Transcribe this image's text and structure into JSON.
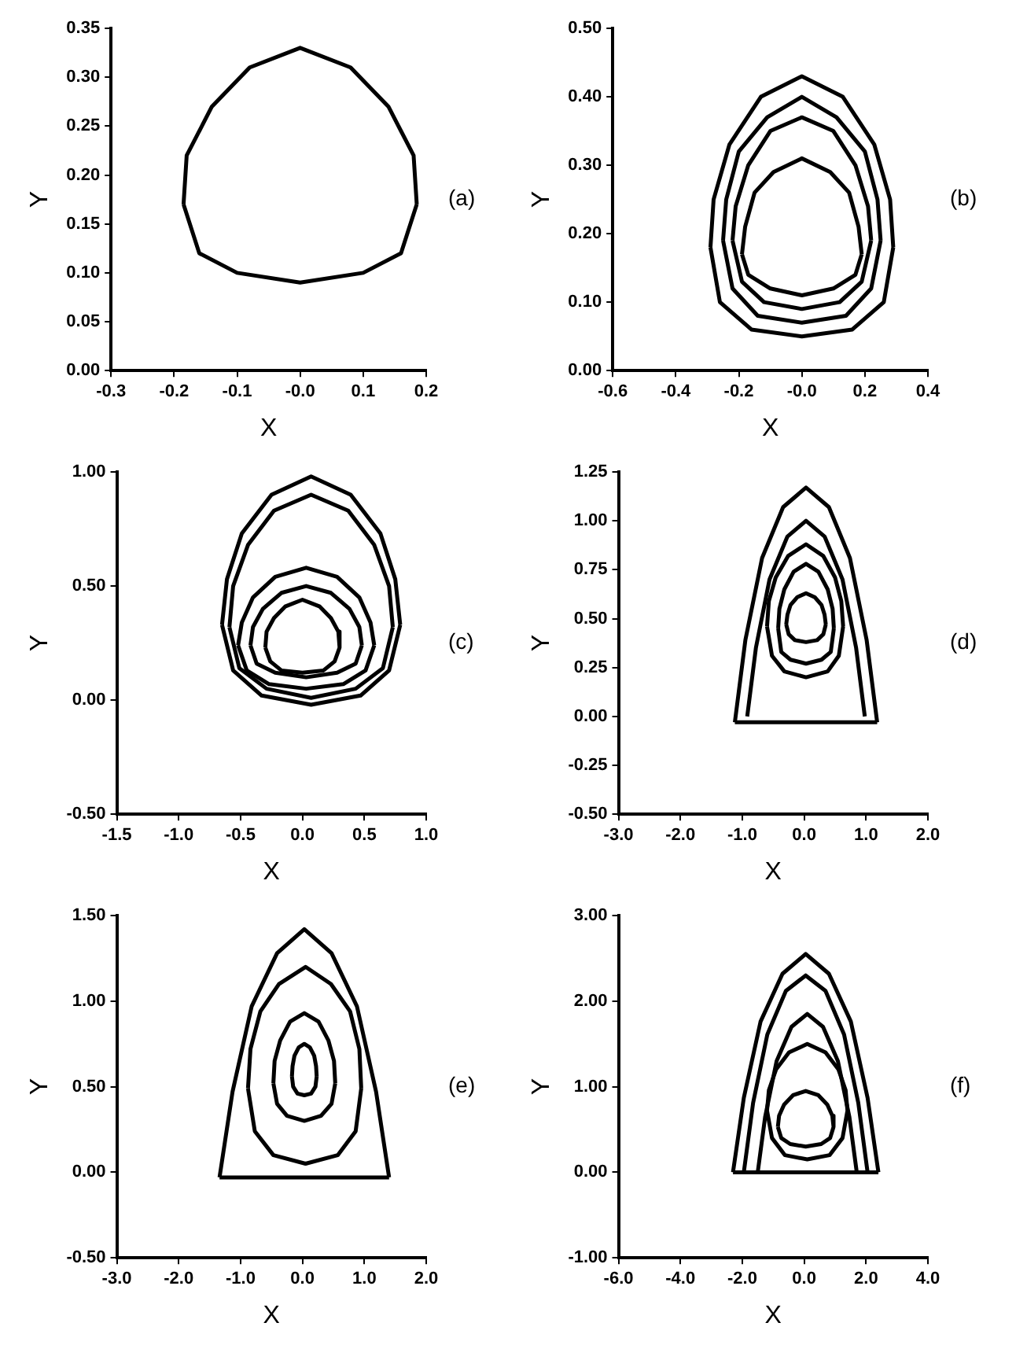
{
  "chart_data": [
    {
      "type": "line",
      "xlabel": "X",
      "ylabel": "Y",
      "annotations": [
        "(a)"
      ],
      "marker": "none",
      "grid": false,
      "legend": false,
      "xlim": [
        -0.3,
        0.2
      ],
      "xticks": [
        -0.3,
        -0.2,
        -0.1,
        {
          "value": 0,
          "label": "-0.0"
        },
        0.1,
        0.2
      ],
      "ylim": [
        0,
        0.35
      ],
      "yticks": [
        {
          "value": 0,
          "label": "0.00"
        },
        0.05,
        {
          "value": 0.1,
          "label": "0.10"
        },
        0.15,
        {
          "value": 0.2,
          "label": "0.20"
        },
        0.25,
        {
          "value": 0.3,
          "label": "0.30"
        },
        0.35
      ],
      "series": [
        {
          "color": "#000000",
          "x": [
            -0.185,
            -0.16,
            -0.1,
            0,
            0.1,
            0.16,
            0.185,
            null,
            -0.185,
            -0.18,
            -0.14,
            -0.08,
            0,
            0.08,
            0.14,
            0.18,
            0.185
          ],
          "values": [
            0.17,
            0.12,
            0.1,
            0.09,
            0.1,
            0.12,
            0.17,
            null,
            0.17,
            0.22,
            0.27,
            0.31,
            0.33,
            0.31,
            0.27,
            0.22,
            0.17
          ]
        }
      ]
    },
    {
      "type": "line",
      "xlabel": "X",
      "ylabel": "Y",
      "annotations": [
        "(b)"
      ],
      "marker": "none",
      "grid": false,
      "legend": false,
      "xlim": [
        -0.6,
        0.4
      ],
      "xticks": [
        {
          "value": -0.6,
          "label": "-0.6"
        },
        -0.4,
        -0.2,
        {
          "value": 0,
          "label": "-0.0"
        },
        0.2,
        0.4
      ],
      "ylim": [
        0,
        0.5
      ],
      "yticks": [
        {
          "value": 0,
          "label": "0.00"
        },
        {
          "value": 0.1,
          "label": "0.10"
        },
        {
          "value": 0.2,
          "label": "0.20"
        },
        {
          "value": 0.3,
          "label": "0.30"
        },
        {
          "value": 0.4,
          "label": "0.40"
        },
        {
          "value": 0.5,
          "label": "0.50"
        }
      ],
      "series": [
        {
          "color": "#000000",
          "x": [
            -0.29,
            -0.26,
            -0.16,
            0,
            0.16,
            0.26,
            0.29,
            null,
            -0.29,
            -0.28,
            -0.23,
            -0.13,
            0,
            0.13,
            0.23,
            0.28,
            0.29
          ],
          "values": [
            0.18,
            0.1,
            0.06,
            0.05,
            0.06,
            0.1,
            0.18,
            null,
            0.18,
            0.25,
            0.33,
            0.4,
            0.43,
            0.4,
            0.33,
            0.25,
            0.18
          ]
        },
        {
          "color": "#000000",
          "x": [
            -0.25,
            -0.22,
            -0.14,
            0,
            0.14,
            0.22,
            0.25,
            null,
            -0.25,
            -0.24,
            -0.2,
            -0.11,
            0,
            0.11,
            0.2,
            0.24,
            0.25
          ],
          "values": [
            0.19,
            0.12,
            0.08,
            0.07,
            0.08,
            0.12,
            0.19,
            null,
            0.19,
            0.25,
            0.32,
            0.37,
            0.4,
            0.37,
            0.32,
            0.25,
            0.19
          ]
        },
        {
          "color": "#000000",
          "x": [
            -0.22,
            -0.19,
            -0.12,
            0,
            0.12,
            0.19,
            0.22,
            null,
            -0.22,
            -0.21,
            -0.17,
            -0.1,
            0,
            0.1,
            0.17,
            0.21,
            0.22
          ],
          "values": [
            0.19,
            0.13,
            0.1,
            0.09,
            0.1,
            0.13,
            0.19,
            null,
            0.19,
            0.24,
            0.3,
            0.35,
            0.37,
            0.35,
            0.3,
            0.24,
            0.19
          ]
        },
        {
          "color": "#000000",
          "x": [
            -0.19,
            -0.17,
            -0.1,
            0,
            0.1,
            0.17,
            0.19,
            null,
            -0.19,
            -0.18,
            -0.15,
            -0.09,
            0,
            0.09,
            0.15,
            0.18,
            0.19
          ],
          "values": [
            0.17,
            0.14,
            0.12,
            0.11,
            0.12,
            0.14,
            0.17,
            null,
            0.17,
            0.21,
            0.26,
            0.29,
            0.31,
            0.29,
            0.26,
            0.21,
            0.17
          ]
        }
      ]
    },
    {
      "type": "line",
      "xlabel": "X",
      "ylabel": "Y",
      "annotations": [
        "(c)"
      ],
      "marker": "none",
      "grid": false,
      "legend": false,
      "xlim": [
        -1.5,
        1.0
      ],
      "xticks": [
        -1.5,
        {
          "value": -1,
          "label": "-1.0"
        },
        -0.5,
        {
          "value": 0,
          "label": "0.0"
        },
        0.5,
        {
          "value": 1,
          "label": "1.0"
        }
      ],
      "ylim": [
        -0.5,
        1.0
      ],
      "yticks": [
        {
          "value": -0.5,
          "label": "-0.50"
        },
        {
          "value": 0,
          "label": "0.00"
        },
        {
          "value": 0.5,
          "label": "0.50"
        },
        {
          "value": 1,
          "label": "1.00"
        }
      ],
      "series": [
        {
          "color": "#000000",
          "x": [
            -0.65,
            -0.56,
            -0.33,
            0.07,
            0.47,
            0.7,
            0.79,
            null,
            -0.65,
            -0.61,
            -0.49,
            -0.25,
            0.07,
            0.39,
            0.63,
            0.75,
            0.79
          ],
          "values": [
            0.33,
            0.13,
            0.02,
            -0.02,
            0.02,
            0.13,
            0.33,
            null,
            0.33,
            0.53,
            0.73,
            0.9,
            0.98,
            0.9,
            0.73,
            0.53,
            0.33
          ]
        },
        {
          "color": "#000000",
          "x": [
            -0.59,
            -0.51,
            -0.29,
            0.07,
            0.43,
            0.65,
            0.73,
            null,
            -0.59,
            -0.56,
            -0.44,
            -0.23,
            0.07,
            0.37,
            0.58,
            0.7,
            0.73
          ],
          "values": [
            0.32,
            0.14,
            0.05,
            0.01,
            0.05,
            0.14,
            0.32,
            null,
            0.32,
            0.5,
            0.68,
            0.83,
            0.9,
            0.83,
            0.68,
            0.5,
            0.32
          ]
        },
        {
          "color": "#000000",
          "x": [
            -0.52,
            -0.45,
            -0.27,
            0.03,
            0.33,
            0.51,
            0.58,
            null,
            -0.52,
            -0.49,
            -0.4,
            -0.22,
            0.03,
            0.28,
            0.46,
            0.55,
            0.58
          ],
          "values": [
            0.24,
            0.13,
            0.07,
            0.05,
            0.07,
            0.13,
            0.24,
            null,
            0.24,
            0.34,
            0.45,
            0.54,
            0.58,
            0.54,
            0.45,
            0.34,
            0.24
          ]
        },
        {
          "color": "#000000",
          "x": [
            -0.42,
            -0.37,
            -0.22,
            0.03,
            0.28,
            0.43,
            0.48,
            null,
            -0.42,
            -0.4,
            -0.32,
            -0.17,
            0.03,
            0.23,
            0.38,
            0.46,
            0.48
          ],
          "values": [
            0.24,
            0.16,
            0.12,
            0.1,
            0.12,
            0.16,
            0.24,
            null,
            0.24,
            0.32,
            0.4,
            0.47,
            0.5,
            0.47,
            0.4,
            0.32,
            0.24
          ]
        },
        {
          "color": "#000000",
          "x": [
            -0.3,
            -0.26,
            -0.17,
            0,
            0.17,
            0.26,
            0.3,
            null,
            -0.3,
            -0.29,
            -0.23,
            -0.14,
            0,
            0.14,
            0.23,
            0.29,
            0.3
          ],
          "values": [
            0.23,
            0.17,
            0.13,
            0.12,
            0.13,
            0.17,
            0.23,
            null,
            0.23,
            0.3,
            0.36,
            0.41,
            0.44,
            0.41,
            0.36,
            0.3,
            0.23
          ]
        }
      ]
    },
    {
      "type": "line",
      "xlabel": "X",
      "ylabel": "Y",
      "annotations": [
        "(d)"
      ],
      "marker": "none",
      "grid": false,
      "legend": false,
      "xlim": [
        -3.0,
        2.0
      ],
      "xticks": [
        {
          "value": -3,
          "label": "-3.0"
        },
        {
          "value": -2,
          "label": "-2.0"
        },
        {
          "value": -1,
          "label": "-1.0"
        },
        {
          "value": 0,
          "label": "0.0"
        },
        {
          "value": 1,
          "label": "1.0"
        },
        {
          "value": 2,
          "label": "2.0"
        }
      ],
      "ylim": [
        -0.5,
        1.25
      ],
      "yticks": [
        {
          "value": -0.5,
          "label": "-0.50"
        },
        -0.25,
        {
          "value": 0,
          "label": "0.00"
        },
        0.25,
        {
          "value": 0.5,
          "label": "0.50"
        },
        0.75,
        {
          "value": 1,
          "label": "1.00"
        },
        1.25
      ],
      "series": [
        {
          "color": "#000000",
          "x": [
            -1.12,
            0.03,
            1.18,
            null,
            -1.12,
            -0.95,
            -0.68,
            -0.34,
            0.03,
            0.4,
            0.74,
            1.01,
            1.18
          ],
          "values": [
            -0.03,
            -0.03,
            -0.03,
            null,
            -0.03,
            0.39,
            0.81,
            1.07,
            1.17,
            1.07,
            0.81,
            0.39,
            -0.03
          ]
        },
        {
          "color": "#000000",
          "x": [
            -0.92,
            -0.78,
            -0.56,
            -0.27,
            0.03,
            0.33,
            0.62,
            0.84,
            0.98
          ],
          "values": [
            0,
            0.35,
            0.7,
            0.92,
            1.0,
            0.92,
            0.7,
            0.35,
            0
          ]
        },
        {
          "color": "#000000",
          "x": [
            -0.6,
            -0.52,
            -0.32,
            0.03,
            0.38,
            0.56,
            0.63,
            null,
            -0.6,
            -0.57,
            -0.46,
            -0.26,
            0.03,
            0.31,
            0.5,
            0.6,
            0.63
          ],
          "values": [
            0.46,
            0.31,
            0.23,
            0.2,
            0.23,
            0.31,
            0.46,
            null,
            0.46,
            0.59,
            0.71,
            0.82,
            0.88,
            0.82,
            0.71,
            0.59,
            0.46
          ]
        },
        {
          "color": "#000000",
          "x": [
            -0.42,
            -0.37,
            -0.22,
            0.03,
            0.28,
            0.43,
            0.48,
            null,
            -0.42,
            -0.4,
            -0.32,
            -0.17,
            0.03,
            0.23,
            0.38,
            0.46,
            0.48
          ],
          "values": [
            0.45,
            0.33,
            0.29,
            0.27,
            0.29,
            0.33,
            0.45,
            null,
            0.45,
            0.55,
            0.65,
            0.74,
            0.78,
            0.74,
            0.65,
            0.55,
            0.45
          ]
        },
        {
          "color": "#000000",
          "x": [
            -0.29,
            -0.25,
            -0.15,
            0.03,
            0.21,
            0.31,
            0.35,
            null,
            -0.29,
            -0.27,
            -0.22,
            -0.11,
            0.03,
            0.17,
            0.28,
            0.33,
            0.35
          ],
          "values": [
            0.47,
            0.42,
            0.39,
            0.38,
            0.39,
            0.42,
            0.47,
            null,
            0.47,
            0.52,
            0.57,
            0.61,
            0.63,
            0.61,
            0.57,
            0.52,
            0.47
          ]
        }
      ]
    },
    {
      "type": "line",
      "xlabel": "X",
      "ylabel": "Y",
      "annotations": [
        "(e)"
      ],
      "marker": "none",
      "grid": false,
      "legend": false,
      "xlim": [
        -3.0,
        2.0
      ],
      "xticks": [
        {
          "value": -3,
          "label": "-3.0"
        },
        {
          "value": -2,
          "label": "-2.0"
        },
        {
          "value": -1,
          "label": "-1.0"
        },
        {
          "value": 0,
          "label": "0.0"
        },
        {
          "value": 1,
          "label": "1.0"
        },
        {
          "value": 2,
          "label": "2.0"
        }
      ],
      "ylim": [
        -0.5,
        1.5
      ],
      "yticks": [
        {
          "value": -0.5,
          "label": "-0.50"
        },
        {
          "value": 0,
          "label": "0.00"
        },
        {
          "value": 0.5,
          "label": "0.50"
        },
        {
          "value": 1,
          "label": "1.00"
        },
        {
          "value": 1.5,
          "label": "1.50"
        }
      ],
      "series": [
        {
          "color": "#000000",
          "x": [
            -1.34,
            0.03,
            1.4,
            null,
            -1.34,
            -1.13,
            -0.82,
            -0.41,
            0.03,
            0.47,
            0.88,
            1.19,
            1.4
          ],
          "values": [
            -0.03,
            -0.03,
            -0.03,
            null,
            -0.03,
            0.47,
            0.97,
            1.28,
            1.42,
            1.28,
            0.97,
            0.47,
            -0.03
          ]
        },
        {
          "color": "#000000",
          "x": [
            -0.88,
            -0.77,
            -0.47,
            0.05,
            0.57,
            0.86,
            0.95,
            null,
            -0.88,
            -0.84,
            -0.68,
            -0.38,
            0.05,
            0.46,
            0.77,
            0.92,
            0.95
          ],
          "values": [
            0.49,
            0.24,
            0.1,
            0.05,
            0.1,
            0.24,
            0.49,
            null,
            0.49,
            0.72,
            0.94,
            1.1,
            1.2,
            1.1,
            0.94,
            0.72,
            0.49
          ]
        },
        {
          "color": "#000000",
          "x": [
            -0.47,
            -0.41,
            -0.25,
            0.03,
            0.3,
            0.47,
            0.53,
            null,
            -0.47,
            -0.45,
            -0.36,
            -0.2,
            0.03,
            0.26,
            0.42,
            0.51,
            0.53
          ],
          "values": [
            0.52,
            0.4,
            0.33,
            0.3,
            0.33,
            0.4,
            0.52,
            null,
            0.52,
            0.65,
            0.77,
            0.88,
            0.93,
            0.88,
            0.77,
            0.65,
            0.52
          ]
        },
        {
          "color": "#000000",
          "x": [
            -0.17,
            -0.15,
            -0.08,
            0.03,
            0.14,
            0.21,
            0.23,
            null,
            -0.17,
            -0.16,
            -0.13,
            -0.06,
            0.03,
            0.12,
            0.19,
            0.22,
            0.23
          ],
          "values": [
            0.56,
            0.5,
            0.46,
            0.45,
            0.46,
            0.5,
            0.56,
            null,
            0.56,
            0.62,
            0.68,
            0.73,
            0.75,
            0.73,
            0.68,
            0.62,
            0.56
          ]
        }
      ]
    },
    {
      "type": "line",
      "xlabel": "X",
      "ylabel": "Y",
      "annotations": [
        "(f)"
      ],
      "marker": "none",
      "grid": false,
      "legend": false,
      "xlim": [
        -6.0,
        4.0
      ],
      "xticks": [
        {
          "value": -6,
          "label": "-6.0"
        },
        {
          "value": -4,
          "label": "-4.0"
        },
        {
          "value": -2,
          "label": "-2.0"
        },
        {
          "value": 0,
          "label": "0.0"
        },
        {
          "value": 2,
          "label": "2.0"
        },
        {
          "value": 4,
          "label": "4.0"
        }
      ],
      "ylim": [
        -1.0,
        3.0
      ],
      "yticks": [
        {
          "value": -1,
          "label": "-1.00"
        },
        {
          "value": 0,
          "label": "0.00"
        },
        {
          "value": 1,
          "label": "1.00"
        },
        {
          "value": 2,
          "label": "2.00"
        },
        {
          "value": 3,
          "label": "3.00"
        }
      ],
      "series": [
        {
          "color": "#000000",
          "x": [
            -2.3,
            0.05,
            2.4,
            null,
            -2.3,
            -1.95,
            -1.41,
            -0.7,
            0.05,
            0.8,
            1.51,
            2.05,
            2.4
          ],
          "values": [
            0,
            0,
            0,
            null,
            0,
            0.87,
            1.76,
            2.32,
            2.55,
            2.32,
            1.76,
            0.87,
            0
          ]
        },
        {
          "color": "#000000",
          "x": [
            -1.95,
            -1.65,
            -1.19,
            -0.59,
            0.05,
            0.69,
            1.29,
            1.75,
            2.05
          ],
          "values": [
            0,
            0.81,
            1.61,
            2.12,
            2.3,
            2.12,
            1.61,
            0.81,
            0
          ]
        },
        {
          "color": "#000000",
          "x": [
            -1.5,
            -1.26,
            -0.89,
            -0.41,
            0.1,
            0.61,
            1.09,
            1.46,
            1.7
          ],
          "values": [
            0,
            0.65,
            1.3,
            1.7,
            1.85,
            1.7,
            1.3,
            0.65,
            0
          ]
        },
        {
          "color": "#000000",
          "x": [
            -1.2,
            -1.04,
            -0.62,
            0.1,
            0.82,
            1.24,
            1.4,
            null,
            -1.2,
            -1.14,
            -0.91,
            -0.49,
            0.1,
            0.69,
            1.11,
            1.34,
            1.4
          ],
          "values": [
            0.72,
            0.4,
            0.2,
            0.15,
            0.2,
            0.4,
            0.72,
            null,
            0.72,
            0.96,
            1.2,
            1.4,
            1.5,
            1.4,
            1.2,
            0.96,
            0.72
          ]
        },
        {
          "color": "#000000",
          "x": [
            -0.85,
            -0.74,
            -0.45,
            0.05,
            0.55,
            0.84,
            0.95,
            null,
            -0.85,
            -0.81,
            -0.65,
            -0.36,
            0.05,
            0.46,
            0.75,
            0.91,
            0.95
          ],
          "values": [
            0.53,
            0.4,
            0.33,
            0.3,
            0.33,
            0.4,
            0.53,
            null,
            0.53,
            0.66,
            0.79,
            0.9,
            0.95,
            0.9,
            0.79,
            0.66,
            0.53
          ]
        }
      ]
    }
  ]
}
